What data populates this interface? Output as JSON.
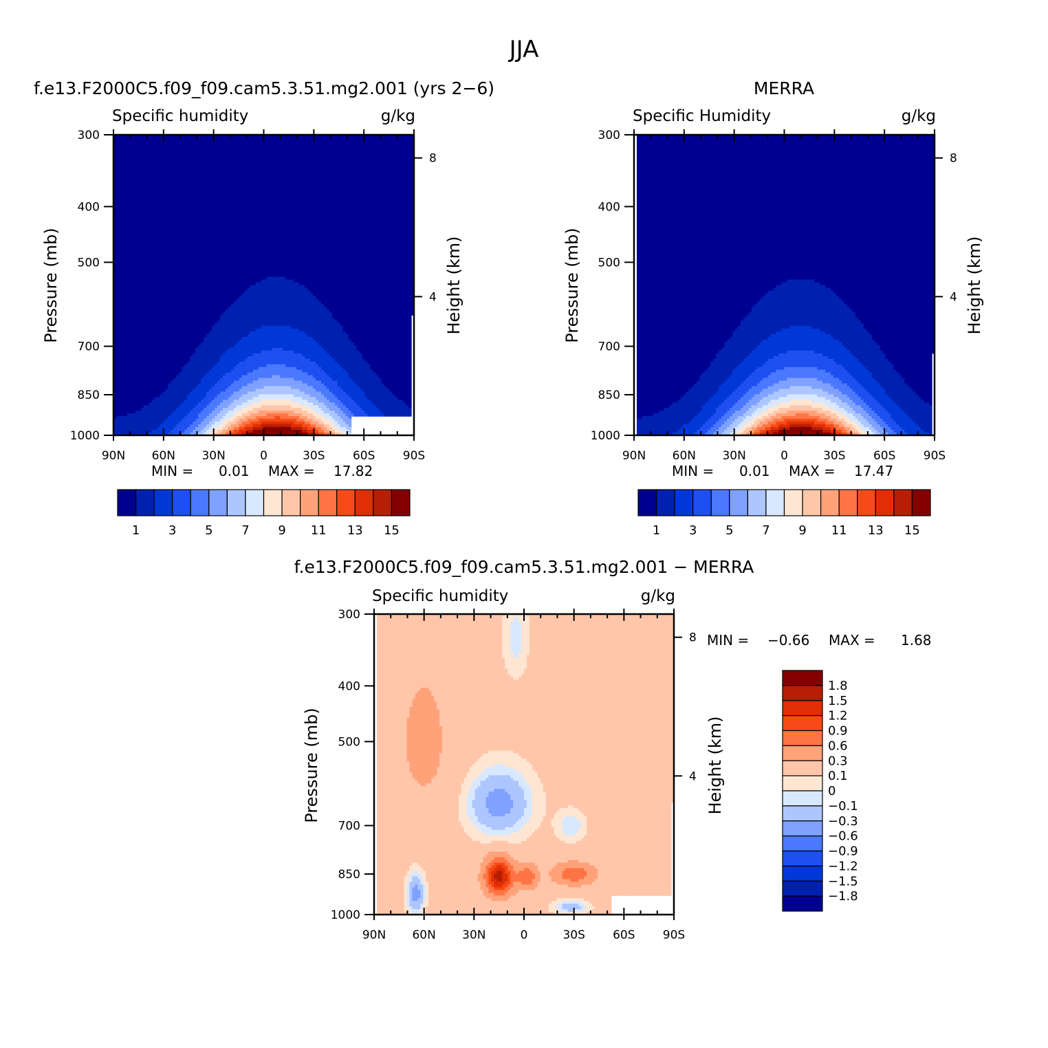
{
  "figure_title": "JJA",
  "colors": {
    "abs_levels": [
      "#000090",
      "#0020b0",
      "#0038d8",
      "#1e4ff0",
      "#4a78ff",
      "#7fa1ff",
      "#adc6ff",
      "#d8e8ff",
      "#ffe6d3",
      "#ffc6aa",
      "#ffa27a",
      "#ff7445",
      "#f64a17",
      "#e12e04",
      "#b71e04",
      "#840000"
    ],
    "diff_levels": [
      "#000090",
      "#0020b0",
      "#0038d8",
      "#1e4ff0",
      "#4a78ff",
      "#7fa1ff",
      "#adc6ff",
      "#d8e8ff",
      "#ffe6d3",
      "#ffc6aa",
      "#ffa27a",
      "#ff7445",
      "#f64a17",
      "#e12e04",
      "#b71e04",
      "#840000"
    ]
  },
  "chart_data": [
    {
      "type": "heatmap",
      "panel_title": "f.e13.F2000C5.f09_f09.cam5.3.51.mg2.001 (yrs 2−6)",
      "left_label": "Specific humidity",
      "right_label": "g/kg",
      "ylabel": "Pressure (mb)",
      "y2label": "Height (km)",
      "x_ticks": [
        "90N",
        "60N",
        "30N",
        "0",
        "30S",
        "60S",
        "90S"
      ],
      "y_ticks": [
        "300",
        "400",
        "500",
        "700",
        "850",
        "1000"
      ],
      "y2_ticks": [
        "8",
        "4"
      ],
      "stats": {
        "min_label": "MIN =",
        "min": "0.01",
        "max_label": "MAX =",
        "max": "17.82"
      },
      "colorbar_labels": [
        "1",
        "3",
        "5",
        "7",
        "9",
        "11",
        "13",
        "15"
      ],
      "ylim": [
        1000,
        300
      ],
      "xlim": [
        90,
        -90
      ],
      "field": {
        "peak": 17.8,
        "peak_lat": -8,
        "missing_box_lat": -48
      }
    },
    {
      "type": "heatmap",
      "panel_title": "MERRA",
      "left_label": "Specific Humidity",
      "right_label": "g/kg",
      "ylabel": "Pressure (mb)",
      "y2label": "Height (km)",
      "x_ticks": [
        "90N",
        "60N",
        "30N",
        "0",
        "30S",
        "60S",
        "90S"
      ],
      "y_ticks": [
        "300",
        "400",
        "500",
        "700",
        "850",
        "1000"
      ],
      "y2_ticks": [
        "8",
        "4"
      ],
      "stats": {
        "min_label": "MIN =",
        "min": "0.01",
        "max_label": "MAX =",
        "max": "17.47"
      },
      "colorbar_labels": [
        "1",
        "3",
        "5",
        "7",
        "9",
        "11",
        "13",
        "15"
      ],
      "ylim": [
        1000,
        300
      ],
      "xlim": [
        90,
        -90
      ],
      "field": {
        "peak": 17.5,
        "peak_lat": -10
      }
    },
    {
      "type": "heatmap",
      "panel_title": "f.e13.F2000C5.f09_f09.cam5.3.51.mg2.001 − MERRA",
      "left_label": "Specific humidity",
      "right_label": "g/kg",
      "ylabel": "Pressure (mb)",
      "y2label": "Height (km)",
      "x_ticks": [
        "90N",
        "60N",
        "30N",
        "0",
        "30S",
        "60S",
        "90S"
      ],
      "y_ticks": [
        "300",
        "400",
        "500",
        "700",
        "850",
        "1000"
      ],
      "y2_ticks": [
        "8",
        "4"
      ],
      "stats": {
        "min_label": "MIN =",
        "min": "−0.66",
        "max_label": "MAX =",
        "max": "1.68"
      },
      "colorbar_labels": [
        "1.8",
        "1.5",
        "1.2",
        "0.9",
        "0.6",
        "0.3",
        "0.1",
        "0",
        "−0.1",
        "−0.3",
        "−0.6",
        "−0.9",
        "−1.2",
        "−1.5",
        "−1.8"
      ],
      "levels": [
        -1.8,
        -1.5,
        -1.2,
        -0.9,
        -0.6,
        -0.3,
        -0.1,
        0,
        0.1,
        0.3,
        0.6,
        0.9,
        1.2,
        1.5,
        1.8
      ],
      "ylim": [
        1000,
        300
      ],
      "xlim": [
        90,
        -90
      ]
    }
  ]
}
